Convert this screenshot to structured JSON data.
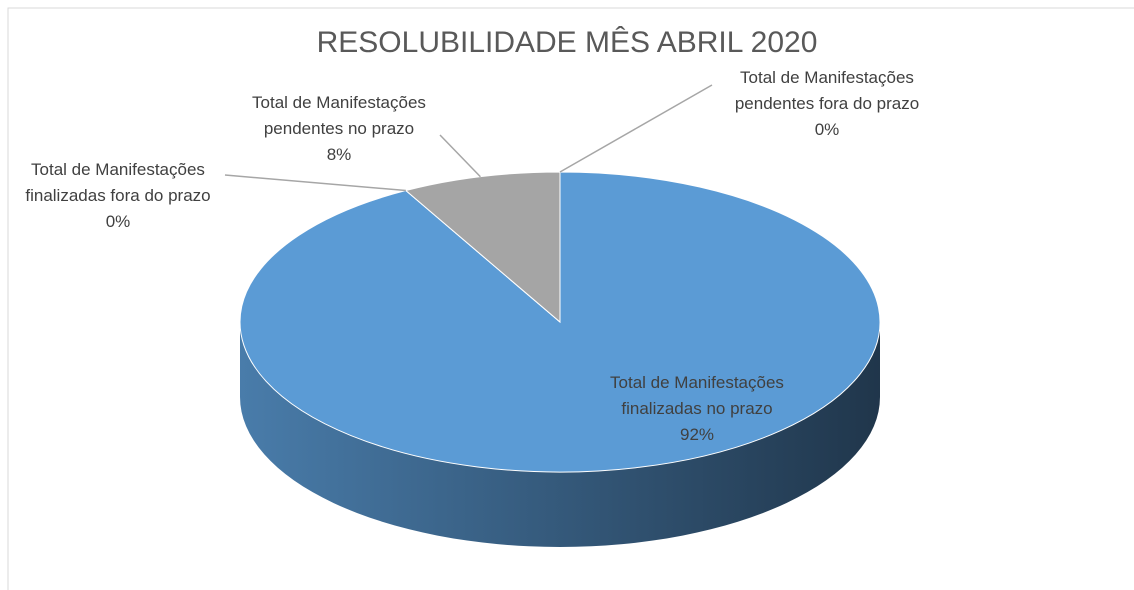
{
  "chart_data": {
    "type": "pie3d",
    "title": "RESOLUBILIDADE MÊS ABRIL 2020",
    "categories": [
      "Total de Manifestações finalizadas no prazo",
      "Total de Manifestações finalizadas fora do prazo",
      "Total de Manifestações pendentes no prazo",
      "Total de Manifestações pendentes fora do prazo"
    ],
    "values": [
      92,
      0,
      8,
      0
    ],
    "value_labels": [
      "92%",
      "0%",
      "8%",
      "0%"
    ],
    "colors": [
      "#5b9bd5",
      "#ed7d31",
      "#a5a5a5",
      "#ffc000"
    ]
  }
}
